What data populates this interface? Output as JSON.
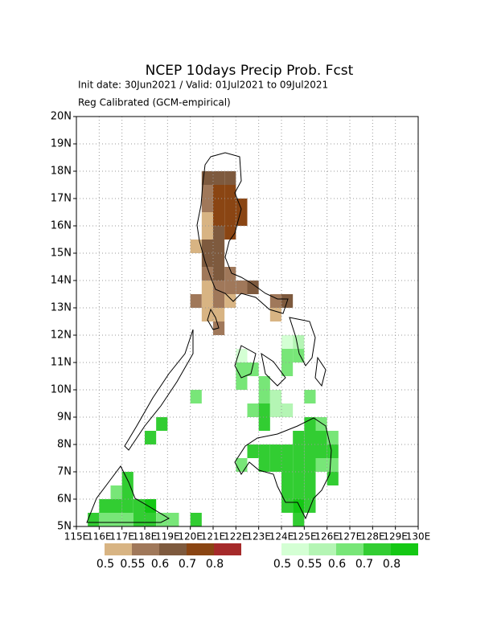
{
  "map": {
    "title": "NCEP 10days Precip Prob. Fcst",
    "subtitle": "Init date: 30Jun2021 / Valid: 01Jul2021 to 09Jul2021",
    "note": "Reg Calibrated (GCM-empirical)",
    "xlim": [
      115,
      130
    ],
    "ylim": [
      5,
      20
    ],
    "grid": true,
    "xticks": [
      {
        "value": 115,
        "label": "115E"
      },
      {
        "value": 116,
        "label": "116E"
      },
      {
        "value": 117,
        "label": "117E"
      },
      {
        "value": 118,
        "label": "118E"
      },
      {
        "value": 119,
        "label": "119E"
      },
      {
        "value": 120,
        "label": "120E"
      },
      {
        "value": 121,
        "label": "121E"
      },
      {
        "value": 122,
        "label": "122E"
      },
      {
        "value": 123,
        "label": "123E"
      },
      {
        "value": 124,
        "label": "124E"
      },
      {
        "value": 125,
        "label": "125E"
      },
      {
        "value": 126,
        "label": "126E"
      },
      {
        "value": 127,
        "label": "127E"
      },
      {
        "value": 128,
        "label": "128E"
      },
      {
        "value": 129,
        "label": "129E"
      },
      {
        "value": 130,
        "label": "130E"
      }
    ],
    "yticks": [
      {
        "value": 5,
        "label": "5N"
      },
      {
        "value": 6,
        "label": "6N"
      },
      {
        "value": 7,
        "label": "7N"
      },
      {
        "value": 8,
        "label": "8N"
      },
      {
        "value": 9,
        "label": "9N"
      },
      {
        "value": 10,
        "label": "10N"
      },
      {
        "value": 11,
        "label": "11N"
      },
      {
        "value": 12,
        "label": "12N"
      },
      {
        "value": 13,
        "label": "13N"
      },
      {
        "value": 14,
        "label": "14N"
      },
      {
        "value": 15,
        "label": "15N"
      },
      {
        "value": 16,
        "label": "16N"
      },
      {
        "value": 17,
        "label": "17N"
      },
      {
        "value": 18,
        "label": "18N"
      },
      {
        "value": 19,
        "label": "19N"
      },
      {
        "value": 20,
        "label": "20N"
      }
    ],
    "layers": [
      {
        "colors": [
          "#d8b483",
          "#a0785a",
          "#7e5a3e",
          "#8a4513",
          "#a52a2a"
        ],
        "thresholds": [
          0.5,
          0.55,
          0.6,
          0.7,
          0.8
        ],
        "cells": [
          [
            120.5,
            17.5,
            0.6
          ],
          [
            121,
            17.5,
            0.6
          ],
          [
            121.5,
            17.5,
            0.6
          ],
          [
            120.5,
            17,
            0.55
          ],
          [
            121,
            17,
            0.7
          ],
          [
            121.5,
            17,
            0.7
          ],
          [
            120.5,
            16.5,
            0.55
          ],
          [
            121,
            16.5,
            0.7
          ],
          [
            121.5,
            16.5,
            0.7
          ],
          [
            122,
            16.5,
            0.7
          ],
          [
            120.5,
            16,
            0.5
          ],
          [
            121,
            16,
            0.7
          ],
          [
            121.5,
            16,
            0.7
          ],
          [
            122,
            16,
            0.7
          ],
          [
            120.5,
            15.5,
            0.5
          ],
          [
            121,
            15.5,
            0.6
          ],
          [
            121.5,
            15.5,
            0.7
          ],
          [
            120,
            15,
            0.5
          ],
          [
            120.5,
            15,
            0.6
          ],
          [
            121,
            15,
            0.6
          ],
          [
            120.5,
            14.5,
            0.6
          ],
          [
            121,
            14.5,
            0.6
          ],
          [
            120.5,
            14,
            0.55
          ],
          [
            121,
            14,
            0.6
          ],
          [
            121.5,
            14,
            0.55
          ],
          [
            120.5,
            13.5,
            0.5
          ],
          [
            121,
            13.5,
            0.55
          ],
          [
            121.5,
            13.5,
            0.55
          ],
          [
            122,
            13.5,
            0.55
          ],
          [
            122.5,
            13.5,
            0.6
          ],
          [
            120,
            13,
            0.55
          ],
          [
            120.5,
            13,
            0.5
          ],
          [
            121,
            13,
            0.55
          ],
          [
            121.5,
            13,
            0.5
          ],
          [
            123.5,
            13,
            0.55
          ],
          [
            124,
            13,
            0.6
          ],
          [
            120.5,
            12.5,
            0.5
          ],
          [
            121,
            12.5,
            0.5
          ],
          [
            123.5,
            12.5,
            0.5
          ],
          [
            121,
            12,
            0.55
          ]
        ]
      },
      {
        "colors": [
          "#d4ffd4",
          "#b4f5b4",
          "#78e678",
          "#32cd32",
          "#14c814"
        ],
        "thresholds": [
          0.5,
          0.55,
          0.6,
          0.7,
          0.8
        ],
        "cells": [
          [
            124,
            11.5,
            0.5
          ],
          [
            124.5,
            11.5,
            0.55
          ],
          [
            122,
            11,
            0.5
          ],
          [
            124,
            11,
            0.6
          ],
          [
            124.5,
            11,
            0.6
          ],
          [
            122,
            10.5,
            0.6
          ],
          [
            122.5,
            10.5,
            0.6
          ],
          [
            124,
            10.5,
            0.6
          ],
          [
            122,
            10,
            0.6
          ],
          [
            123,
            10,
            0.6
          ],
          [
            120,
            9.5,
            0.6
          ],
          [
            123,
            9.5,
            0.6
          ],
          [
            123.5,
            9.5,
            0.55
          ],
          [
            125,
            9.5,
            0.6
          ],
          [
            122.5,
            9,
            0.6
          ],
          [
            123,
            9,
            0.7
          ],
          [
            123.5,
            9,
            0.55
          ],
          [
            124,
            9,
            0.55
          ],
          [
            118.5,
            8.5,
            0.7
          ],
          [
            123,
            8.5,
            0.7
          ],
          [
            125,
            8.5,
            0.7
          ],
          [
            125.5,
            8.5,
            0.6
          ],
          [
            118,
            8,
            0.7
          ],
          [
            124.5,
            8,
            0.7
          ],
          [
            125,
            8,
            0.7
          ],
          [
            125.5,
            8,
            0.7
          ],
          [
            126,
            8,
            0.6
          ],
          [
            122.5,
            7.5,
            0.7
          ],
          [
            123,
            7.5,
            0.7
          ],
          [
            123.5,
            7.5,
            0.7
          ],
          [
            124,
            7.5,
            0.7
          ],
          [
            124.5,
            7.5,
            0.7
          ],
          [
            125,
            7.5,
            0.7
          ],
          [
            125.5,
            7.5,
            0.7
          ],
          [
            126,
            7.5,
            0.7
          ],
          [
            122,
            7,
            0.6
          ],
          [
            123,
            7,
            0.7
          ],
          [
            123.5,
            7,
            0.7
          ],
          [
            124,
            7,
            0.7
          ],
          [
            124.5,
            7,
            0.7
          ],
          [
            125,
            7,
            0.7
          ],
          [
            125.5,
            7,
            0.6
          ],
          [
            126,
            7,
            0.6
          ],
          [
            117,
            6.5,
            0.7
          ],
          [
            124,
            6.5,
            0.7
          ],
          [
            124.5,
            6.5,
            0.7
          ],
          [
            125,
            6.5,
            0.7
          ],
          [
            126,
            6.5,
            0.7
          ],
          [
            116.5,
            6,
            0.6
          ],
          [
            117,
            6,
            0.7
          ],
          [
            124,
            6,
            0.7
          ],
          [
            124.5,
            6,
            0.7
          ],
          [
            125,
            6,
            0.7
          ],
          [
            116,
            5.5,
            0.7
          ],
          [
            116.5,
            5.5,
            0.7
          ],
          [
            117,
            5.5,
            0.7
          ],
          [
            117.5,
            5.5,
            0.7
          ],
          [
            118,
            5.5,
            0.8
          ],
          [
            124,
            5.5,
            0.7
          ],
          [
            124.5,
            5.5,
            0.8
          ],
          [
            125,
            5.5,
            0.7
          ],
          [
            115.5,
            5,
            0.7
          ],
          [
            116,
            5,
            0.6
          ],
          [
            116.5,
            5,
            0.6
          ],
          [
            117,
            5,
            0.6
          ],
          [
            117.5,
            5,
            0.7
          ],
          [
            118,
            5,
            0.7
          ],
          [
            118.5,
            5,
            0.6
          ],
          [
            119,
            5,
            0.6
          ],
          [
            120,
            5,
            0.7
          ],
          [
            124.5,
            5,
            0.7
          ]
        ]
      }
    ]
  }
}
